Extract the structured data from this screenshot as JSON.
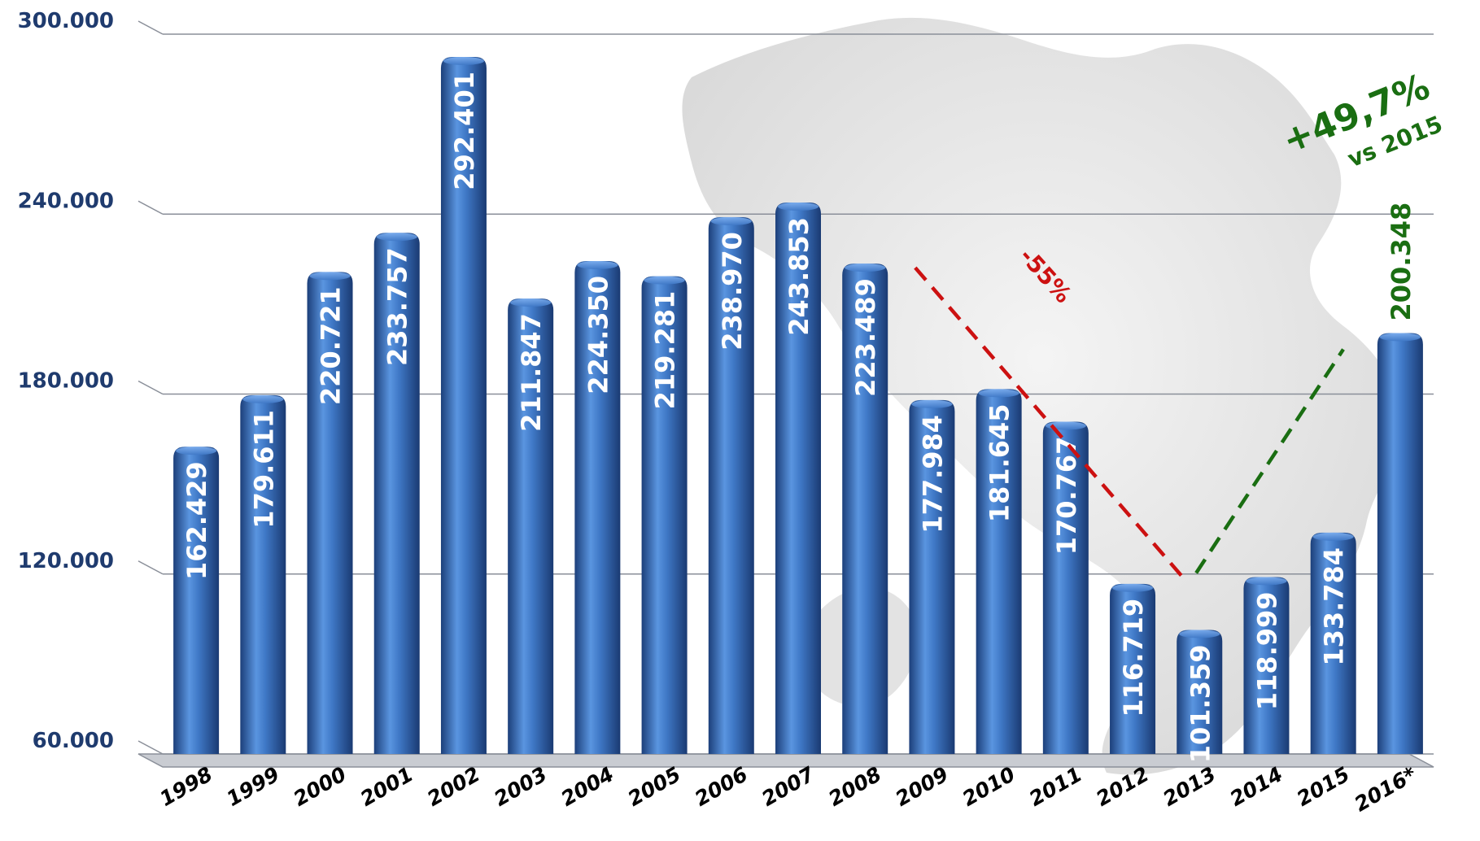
{
  "chart_data": {
    "type": "bar",
    "categories": [
      "1998",
      "1999",
      "2000",
      "2001",
      "2002",
      "2003",
      "2004",
      "2005",
      "2006",
      "2007",
      "2008",
      "2009",
      "2010",
      "2011",
      "2012",
      "2013",
      "2014",
      "2015",
      "2016*"
    ],
    "values": [
      162429,
      179611,
      220721,
      233757,
      292401,
      211847,
      224350,
      219281,
      238970,
      243853,
      223489,
      177984,
      181645,
      170767,
      116719,
      101359,
      118999,
      133784,
      200348
    ],
    "value_labels": [
      "162.429",
      "179.611",
      "220.721",
      "233.757",
      "292.401",
      "211.847",
      "224.350",
      "219.281",
      "238.970",
      "243.853",
      "223.489",
      "177.984",
      "181.645",
      "170.767",
      "116.719",
      "101.359",
      "118.999",
      "133.784",
      "200.348"
    ],
    "ylim": [
      60000,
      300000
    ],
    "yticks": [
      60000,
      120000,
      180000,
      240000,
      300000
    ],
    "ytick_labels": [
      "60.000",
      "120.000",
      "180.000",
      "240.000",
      "300.000"
    ],
    "title": "",
    "xlabel": "",
    "ylabel": "",
    "grid": true,
    "annotations": {
      "decline_label": "-55%",
      "decline_from_category": "2008",
      "decline_to_category": "2013",
      "growth_label": "+49,7%",
      "growth_sublabel": "vs 2015",
      "growth_from_category": "2013",
      "growth_to_category": "2016*"
    },
    "colors": {
      "bar": "#3f78c6",
      "bar_dark": "#1c3f7a",
      "decline": "#cc1111",
      "growth": "#1a6e12",
      "axis_text": "#1f3b6e",
      "grid": "#8a8f99"
    }
  }
}
